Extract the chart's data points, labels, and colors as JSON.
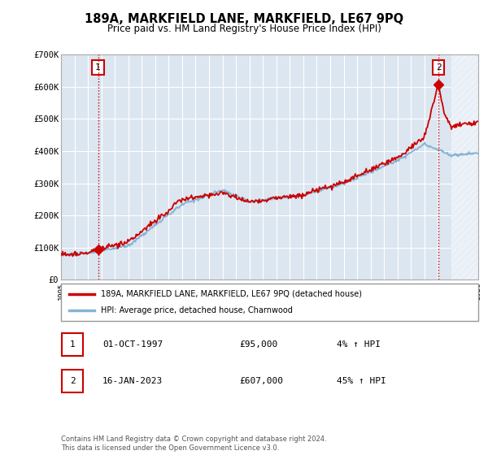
{
  "title": "189A, MARKFIELD LANE, MARKFIELD, LE67 9PQ",
  "subtitle": "Price paid vs. HM Land Registry's House Price Index (HPI)",
  "ylim": [
    0,
    700000
  ],
  "yticks": [
    0,
    100000,
    200000,
    300000,
    400000,
    500000,
    600000,
    700000
  ],
  "ytick_labels": [
    "£0",
    "£100K",
    "£200K",
    "£300K",
    "£400K",
    "£500K",
    "£600K",
    "£700K"
  ],
  "sale1_year": 1997.75,
  "sale1_price": 95000,
  "sale2_year": 2023.04,
  "sale2_price": 607000,
  "bg_color": "#dce6f1",
  "line_red": "#cc0000",
  "line_blue": "#85b4d4",
  "legend_label1": "189A, MARKFIELD LANE, MARKFIELD, LE67 9PQ (detached house)",
  "legend_label2": "HPI: Average price, detached house, Charnwood",
  "sale1_label": "1",
  "sale2_label": "2",
  "sale1_date": "01-OCT-1997",
  "sale1_amount": "£95,000",
  "sale1_hpi": "4% ↑ HPI",
  "sale2_date": "16-JAN-2023",
  "sale2_amount": "£607,000",
  "sale2_hpi": "45% ↑ HPI",
  "footer": "Contains HM Land Registry data © Crown copyright and database right 2024.\nThis data is licensed under the Open Government Licence v3.0."
}
